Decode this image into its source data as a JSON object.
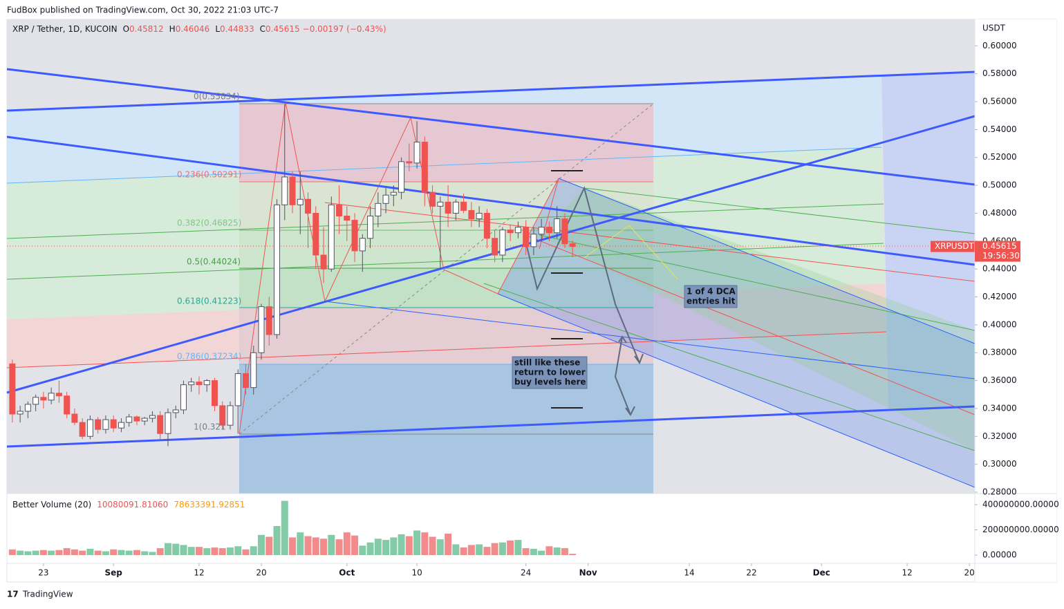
{
  "header": {
    "publisher": "FudBox published on TradingView.com, Oct 30, 2022 21:03 UTC-7",
    "footer": "TradingView"
  },
  "chart_data": {
    "type": "candlestick",
    "title": "XRP / Tether, 1D, KUCOIN",
    "legend": {
      "open_label": "O",
      "high_label": "H",
      "low_label": "L",
      "close_label": "C",
      "change": "−0.00197 (−0.43%)"
    },
    "unit": "USDT",
    "symbol": "XRPUSDT",
    "countdown": "19:56:30",
    "up_color": "#ffffff",
    "down_color": "#ef5350",
    "open": [
      0.372,
      0.336,
      0.338,
      0.343,
      0.348,
      0.346,
      0.351,
      0.349,
      0.336,
      0.33,
      0.32,
      0.332,
      0.325,
      0.332,
      0.326,
      0.33,
      0.334,
      0.331,
      0.333,
      0.335,
      0.322,
      0.337,
      0.339,
      0.357,
      0.359,
      0.357,
      0.36,
      0.342,
      0.328,
      0.342,
      0.365,
      0.355,
      0.38,
      0.413,
      0.393,
      0.486,
      0.506,
      0.486,
      0.49,
      0.48,
      0.45,
      0.44,
      0.486,
      0.478,
      0.475,
      0.453,
      0.462,
      0.478,
      0.487,
      0.493,
      0.495,
      0.517,
      0.516,
      0.531,
      0.495,
      0.485,
      0.488,
      0.48,
      0.488,
      0.482,
      0.476,
      0.48,
      0.462,
      0.45,
      0.468,
      0.466,
      0.47,
      0.456,
      0.465,
      0.47,
      0.466,
      0.476,
      0.45812
    ],
    "high": [
      0.375,
      0.342,
      0.345,
      0.35,
      0.352,
      0.355,
      0.36,
      0.352,
      0.34,
      0.333,
      0.335,
      0.334,
      0.335,
      0.335,
      0.333,
      0.336,
      0.335,
      0.334,
      0.338,
      0.338,
      0.34,
      0.342,
      0.36,
      0.362,
      0.363,
      0.361,
      0.362,
      0.345,
      0.345,
      0.368,
      0.372,
      0.385,
      0.415,
      0.42,
      0.49,
      0.558,
      0.51,
      0.51,
      0.495,
      0.485,
      0.47,
      0.492,
      0.5,
      0.485,
      0.48,
      0.465,
      0.485,
      0.495,
      0.498,
      0.5,
      0.52,
      0.53,
      0.546,
      0.535,
      0.5,
      0.492,
      0.5,
      0.49,
      0.494,
      0.488,
      0.485,
      0.483,
      0.468,
      0.47,
      0.472,
      0.474,
      0.475,
      0.47,
      0.476,
      0.474,
      0.485,
      0.48,
      0.46046
    ],
    "low": [
      0.33,
      0.33,
      0.333,
      0.338,
      0.34,
      0.343,
      0.344,
      0.333,
      0.328,
      0.318,
      0.318,
      0.322,
      0.322,
      0.323,
      0.323,
      0.327,
      0.328,
      0.328,
      0.33,
      0.318,
      0.313,
      0.333,
      0.336,
      0.352,
      0.35,
      0.352,
      0.338,
      0.325,
      0.325,
      0.322,
      0.35,
      0.35,
      0.375,
      0.385,
      0.39,
      0.475,
      0.48,
      0.465,
      0.455,
      0.44,
      0.43,
      0.438,
      0.465,
      0.46,
      0.445,
      0.438,
      0.455,
      0.47,
      0.48,
      0.485,
      0.49,
      0.51,
      0.512,
      0.485,
      0.48,
      0.44,
      0.47,
      0.475,
      0.48,
      0.47,
      0.47,
      0.455,
      0.445,
      0.445,
      0.46,
      0.462,
      0.45,
      0.45,
      0.46,
      0.46,
      0.462,
      0.455,
      0.44833
    ],
    "close": [
      0.336,
      0.338,
      0.343,
      0.348,
      0.346,
      0.351,
      0.349,
      0.336,
      0.33,
      0.32,
      0.332,
      0.325,
      0.332,
      0.326,
      0.33,
      0.334,
      0.331,
      0.333,
      0.335,
      0.322,
      0.337,
      0.339,
      0.357,
      0.359,
      0.357,
      0.36,
      0.342,
      0.328,
      0.342,
      0.365,
      0.355,
      0.38,
      0.413,
      0.393,
      0.486,
      0.506,
      0.486,
      0.49,
      0.48,
      0.45,
      0.44,
      0.486,
      0.478,
      0.475,
      0.453,
      0.462,
      0.478,
      0.487,
      0.493,
      0.495,
      0.517,
      0.516,
      0.531,
      0.495,
      0.485,
      0.488,
      0.48,
      0.488,
      0.482,
      0.476,
      0.48,
      0.462,
      0.45,
      0.468,
      0.466,
      0.47,
      0.456,
      0.465,
      0.47,
      0.466,
      0.476,
      0.458,
      0.45615
    ],
    "xlim": [
      -0.7,
      123.7
    ],
    "xticks": [
      {
        "value": 4,
        "label": "23"
      },
      {
        "value": 13,
        "label": "Sep"
      },
      {
        "value": 24,
        "label": "12"
      },
      {
        "value": 32,
        "label": "20"
      },
      {
        "value": 43,
        "label": "Oct"
      },
      {
        "value": 52,
        "label": "10"
      },
      {
        "value": 66,
        "label": "24"
      },
      {
        "value": 74,
        "label": "Nov"
      },
      {
        "value": 87,
        "label": "14"
      },
      {
        "value": 95,
        "label": "22"
      },
      {
        "value": 104,
        "label": "Dec"
      },
      {
        "value": 115,
        "label": "12"
      },
      {
        "value": 123,
        "label": "20"
      }
    ],
    "ylim": [
      0.279,
      0.619
    ],
    "yticks": [
      {
        "value": 0.28,
        "label": "0.28000"
      },
      {
        "value": 0.3,
        "label": "0.30000"
      },
      {
        "value": 0.32,
        "label": "0.32000"
      },
      {
        "value": 0.34,
        "label": "0.34000"
      },
      {
        "value": 0.36,
        "label": "0.36000"
      },
      {
        "value": 0.38,
        "label": "0.38000"
      },
      {
        "value": 0.4,
        "label": "0.40000"
      },
      {
        "value": 0.42,
        "label": "0.42000"
      },
      {
        "value": 0.44,
        "label": "0.44000"
      },
      {
        "value": 0.46,
        "label": "0.46000"
      },
      {
        "value": 0.48,
        "label": "0.48000"
      },
      {
        "value": 0.5,
        "label": "0.50000"
      },
      {
        "value": 0.52,
        "label": "0.52000"
      },
      {
        "value": 0.54,
        "label": "0.54000"
      },
      {
        "value": 0.56,
        "label": "0.56000"
      },
      {
        "value": 0.58,
        "label": "0.58000"
      },
      {
        "value": 0.6,
        "label": "0.60000"
      }
    ],
    "volume": {
      "name": "Better Volume (20)",
      "labels": [
        "10080091.81060",
        "78633391.92851"
      ],
      "up_color": "#82cba6",
      "down_color": "#f28b8b",
      "values": [
        45000000,
        35000000,
        30000000,
        35000000,
        40000000,
        35000000,
        40000000,
        55000000,
        45000000,
        35000000,
        50000000,
        35000000,
        30000000,
        45000000,
        40000000,
        35000000,
        40000000,
        30000000,
        25000000,
        55000000,
        95000000,
        90000000,
        80000000,
        65000000,
        65000000,
        55000000,
        60000000,
        55000000,
        60000000,
        70000000,
        45000000,
        70000000,
        160000000,
        145000000,
        230000000,
        430000000,
        140000000,
        180000000,
        150000000,
        140000000,
        130000000,
        160000000,
        125000000,
        180000000,
        155000000,
        75000000,
        100000000,
        130000000,
        120000000,
        140000000,
        165000000,
        150000000,
        195000000,
        180000000,
        145000000,
        125000000,
        170000000,
        85000000,
        60000000,
        80000000,
        85000000,
        65000000,
        95000000,
        100000000,
        115000000,
        120000000,
        55000000,
        50000000,
        35000000,
        70000000,
        60000000,
        55000000,
        10080091.8106
      ],
      "ylim": [
        -65800000,
        487700000
      ],
      "yticks": [
        {
          "value": 0,
          "label": "0.00000"
        },
        {
          "value": 200000000,
          "label": "200000000.00000"
        },
        {
          "value": 400000000,
          "label": "400000000.00000"
        }
      ]
    },
    "annotations": {
      "fib_levels": [
        "0(0.55834)",
        "0.236(0.50291)",
        "0.382(0.46825)",
        "0.5(0.44024)",
        "0.618(0.41223)",
        "0.786(0.37234)",
        "1(0.321"
      ],
      "notes": [
        [
          "1 of 4 DCA",
          "entries hit"
        ],
        [
          "still like these",
          "return to lower",
          "buy levels here"
        ]
      ]
    }
  }
}
